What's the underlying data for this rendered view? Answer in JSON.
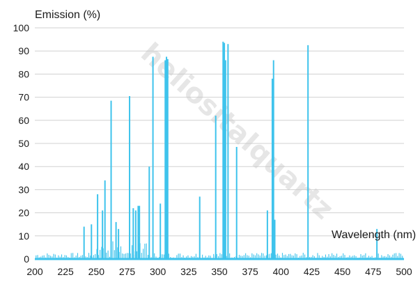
{
  "chart_data": {
    "type": "bar",
    "ylabel": "Emission (%)",
    "xlabel": "Wavelength (nm)",
    "xlim": [
      200,
      500
    ],
    "ylim": [
      0,
      100
    ],
    "x_ticks": [
      200,
      225,
      250,
      275,
      300,
      325,
      350,
      375,
      400,
      425,
      450,
      475,
      500
    ],
    "y_ticks": [
      0,
      10,
      20,
      30,
      40,
      50,
      60,
      70,
      80,
      90,
      100
    ],
    "grid": "horizontal",
    "bar_color": "#3ec3ec",
    "baseline_color": "#3ec3ec",
    "watermark": "heliositalquartz",
    "lines": [
      {
        "x": 240,
        "y": 14
      },
      {
        "x": 246,
        "y": 15
      },
      {
        "x": 251,
        "y": 28
      },
      {
        "x": 255,
        "y": 21
      },
      {
        "x": 257,
        "y": 34
      },
      {
        "x": 262,
        "y": 68.5
      },
      {
        "x": 266,
        "y": 16
      },
      {
        "x": 268,
        "y": 13
      },
      {
        "x": 277,
        "y": 70.5
      },
      {
        "x": 280,
        "y": 22
      },
      {
        "x": 282,
        "y": 21
      },
      {
        "x": 284,
        "y": 23
      },
      {
        "x": 285,
        "y": 23
      },
      {
        "x": 293,
        "y": 40
      },
      {
        "x": 296,
        "y": 87.5
      },
      {
        "x": 302,
        "y": 24
      },
      {
        "x": 306,
        "y": 86
      },
      {
        "x": 307,
        "y": 87.5
      },
      {
        "x": 308,
        "y": 86.5
      },
      {
        "x": 334,
        "y": 27
      },
      {
        "x": 347,
        "y": 62
      },
      {
        "x": 353,
        "y": 94
      },
      {
        "x": 354,
        "y": 93.5
      },
      {
        "x": 355,
        "y": 86
      },
      {
        "x": 357,
        "y": 93
      },
      {
        "x": 364,
        "y": 48.5
      },
      {
        "x": 389,
        "y": 21
      },
      {
        "x": 393,
        "y": 78
      },
      {
        "x": 394,
        "y": 86
      },
      {
        "x": 395,
        "y": 17
      },
      {
        "x": 422,
        "y": 92.5
      },
      {
        "x": 478,
        "y": 13
      }
    ]
  }
}
